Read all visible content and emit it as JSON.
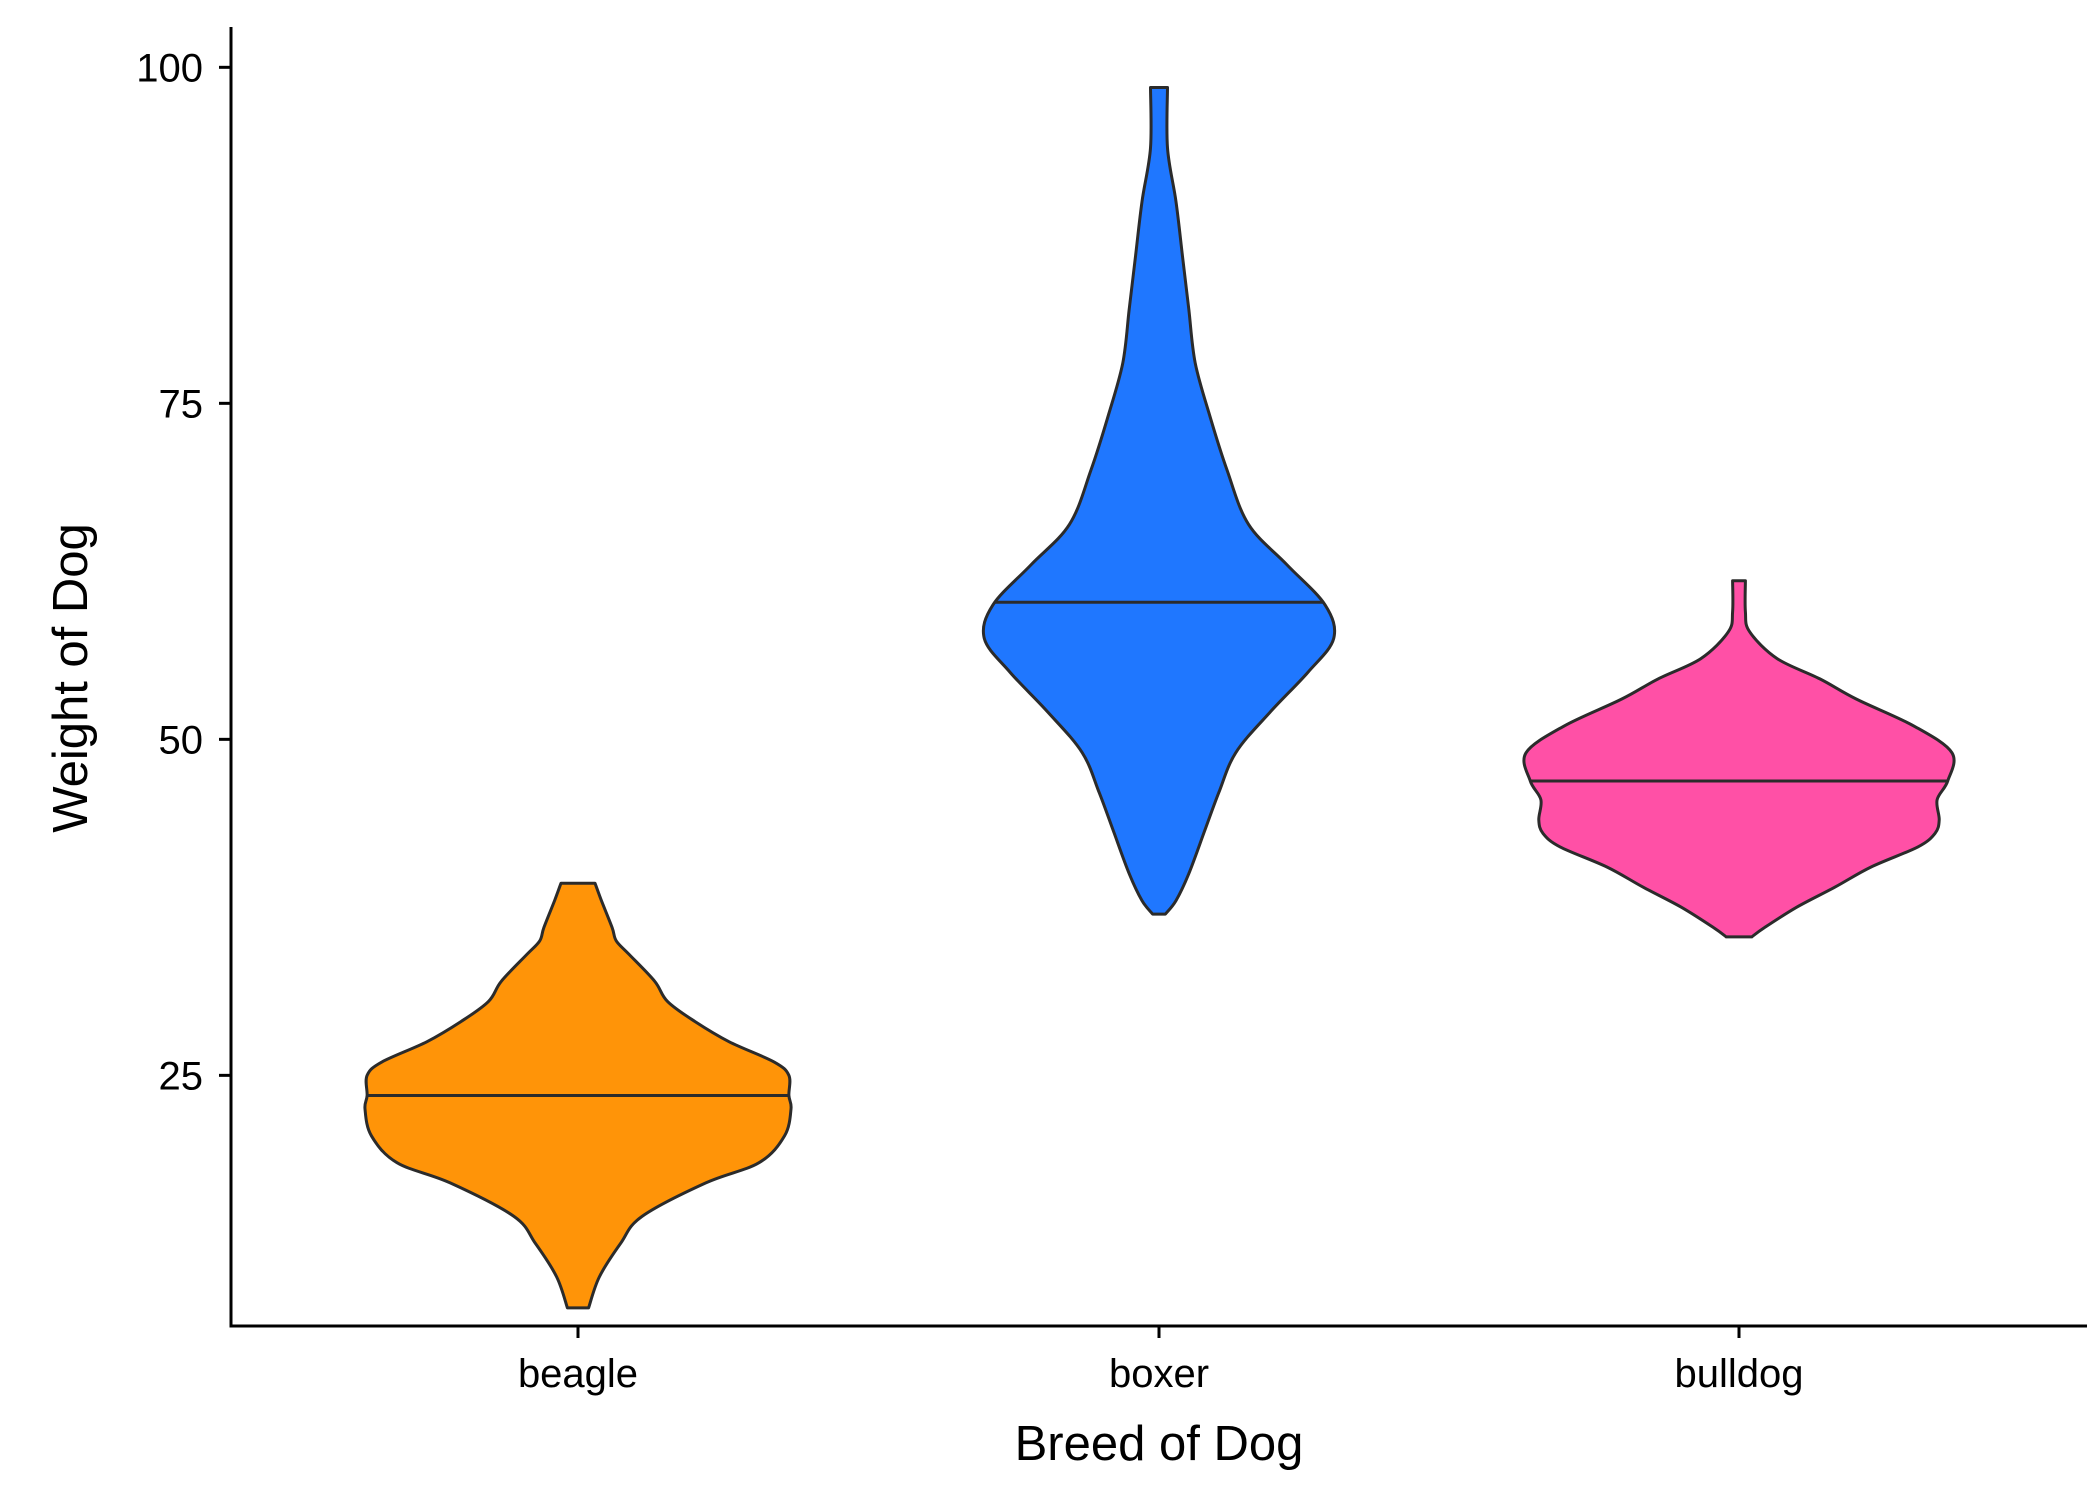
{
  "chart_data": {
    "type": "violin",
    "xlabel": "Breed of Dog",
    "ylabel": "Weight of Dog",
    "categories": [
      "beagle",
      "boxer",
      "bulldog"
    ],
    "ylim": [
      6.5,
      103
    ],
    "yticks": [
      25,
      50,
      75,
      100
    ],
    "grid": false,
    "legend": "none",
    "violins": [
      {
        "category": "beagle",
        "color": "#FF9408",
        "min": 7.7,
        "max": 39.3,
        "median": 23.5,
        "density_profile": [
          [
            7.7,
            0.05
          ],
          [
            10,
            0.1
          ],
          [
            12.5,
            0.2
          ],
          [
            14.5,
            0.3
          ],
          [
            17,
            0.6
          ],
          [
            18.5,
            0.85
          ],
          [
            20.5,
            0.97
          ],
          [
            22.5,
            1.0
          ],
          [
            23.5,
            0.99
          ],
          [
            25,
            0.99
          ],
          [
            26,
            0.92
          ],
          [
            27.5,
            0.71
          ],
          [
            29,
            0.55
          ],
          [
            30.5,
            0.42
          ],
          [
            32,
            0.36
          ],
          [
            34,
            0.24
          ],
          [
            35,
            0.18
          ],
          [
            36,
            0.16
          ],
          [
            38,
            0.11
          ],
          [
            39.3,
            0.08
          ]
        ]
      },
      {
        "category": "boxer",
        "color": "#1F77FF",
        "min": 37,
        "max": 98.5,
        "median": 60.2,
        "density_profile": [
          [
            37,
            0.03
          ],
          [
            38,
            0.08
          ],
          [
            40,
            0.14
          ],
          [
            43,
            0.21
          ],
          [
            46,
            0.28
          ],
          [
            49,
            0.36
          ],
          [
            52,
            0.52
          ],
          [
            55,
            0.7
          ],
          [
            57.5,
            0.82
          ],
          [
            60,
            0.78
          ],
          [
            63,
            0.6
          ],
          [
            66,
            0.42
          ],
          [
            70,
            0.32
          ],
          [
            74,
            0.24
          ],
          [
            78,
            0.17
          ],
          [
            82,
            0.14
          ],
          [
            86,
            0.11
          ],
          [
            90,
            0.08
          ],
          [
            94,
            0.04
          ],
          [
            98.5,
            0.04
          ]
        ]
      },
      {
        "category": "bulldog",
        "color": "#FF50A6",
        "min": 35.3,
        "max": 61.8,
        "median": 46.9,
        "density_profile": [
          [
            35.3,
            0.06
          ],
          [
            36,
            0.12
          ],
          [
            37.5,
            0.27
          ],
          [
            39,
            0.45
          ],
          [
            40.5,
            0.62
          ],
          [
            42,
            0.84
          ],
          [
            43,
            0.92
          ],
          [
            44,
            0.94
          ],
          [
            45.5,
            0.93
          ],
          [
            46.9,
            0.98
          ],
          [
            49,
            1.0
          ],
          [
            51,
            0.82
          ],
          [
            53,
            0.55
          ],
          [
            54.5,
            0.38
          ],
          [
            56,
            0.18
          ],
          [
            58,
            0.05
          ],
          [
            59.5,
            0.03
          ],
          [
            61.8,
            0.03
          ]
        ]
      }
    ]
  }
}
